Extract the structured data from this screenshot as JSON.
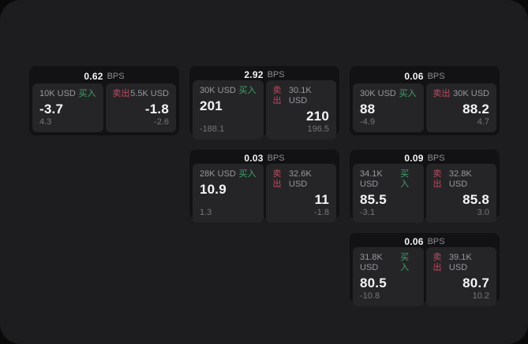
{
  "page": {
    "bps_suffix": "BPS",
    "buy_label": "买入",
    "sell_label": "卖出"
  },
  "colors": {
    "outer_background": "#0a0a0b",
    "container_background": "#1d1d1f",
    "card_background": "#121214",
    "panel_background": "#252528",
    "primary_text": "#f4f4f5",
    "secondary_text": "#98989d",
    "muted_text": "#76767b",
    "buy_green": "#41a36a",
    "sell_red": "#bf4a5f"
  },
  "cards": [
    {
      "bps": "0.62",
      "buy_amount": "10K USD",
      "buy_value": "-3.7",
      "buy_sub": "4.3",
      "sell_amount": "5.5K USD",
      "sell_value": "-1.8",
      "sell_sub": "-2.6"
    },
    {
      "bps": "2.92",
      "buy_amount": "30K USD",
      "buy_value": "201",
      "buy_sub": "-188.1",
      "sell_amount": "30.1K USD",
      "sell_value": "210",
      "sell_sub": "196.5"
    },
    {
      "bps": "0.06",
      "buy_amount": "30K USD",
      "buy_value": "88",
      "buy_sub": "-4.9",
      "sell_amount": "30K USD",
      "sell_value": "88.2",
      "sell_sub": "4.7"
    },
    {
      "bps": "0.03",
      "buy_amount": "28K USD",
      "buy_value": "10.9",
      "buy_sub": "1.3",
      "sell_amount": "32.6K USD",
      "sell_value": "11",
      "sell_sub": "-1.8"
    },
    {
      "bps": "0.09",
      "buy_amount": "34.1K USD",
      "buy_value": "85.5",
      "buy_sub": "-3.1",
      "sell_amount": "32.8K USD",
      "sell_value": "85.8",
      "sell_sub": "3.0"
    },
    {
      "bps": "0.06",
      "buy_amount": "31.8K USD",
      "buy_value": "80.5",
      "buy_sub": "-10.8",
      "sell_amount": "39.1K USD",
      "sell_value": "80.7",
      "sell_sub": "10.2"
    }
  ]
}
